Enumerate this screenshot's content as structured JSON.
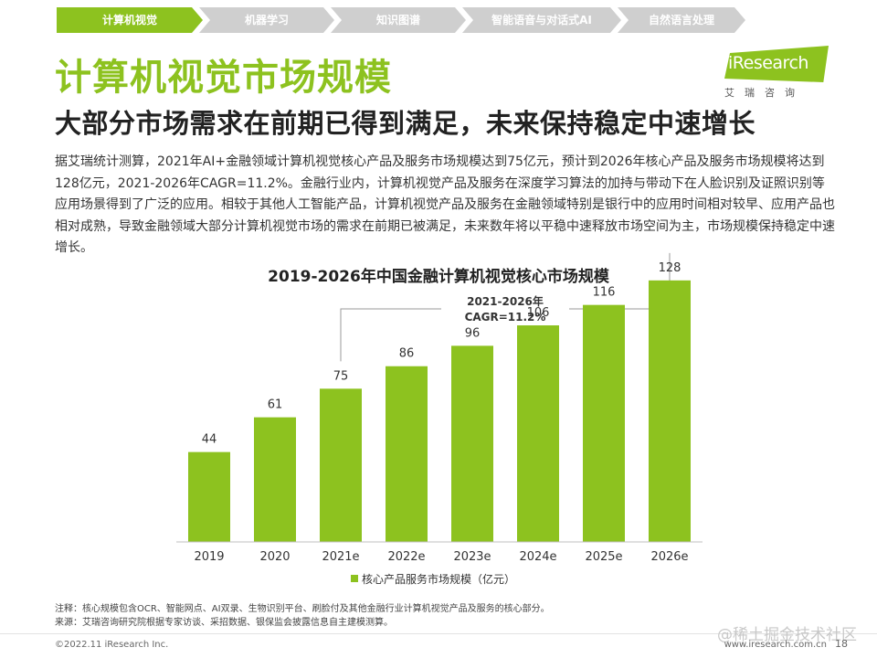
{
  "nav": {
    "tabs": [
      {
        "label": "计算机视觉",
        "active": true
      },
      {
        "label": "机器学习",
        "active": false
      },
      {
        "label": "知识图谱",
        "active": false
      },
      {
        "label": "智能语音与对话式AI",
        "active": false
      },
      {
        "label": "自然语言处理",
        "active": false
      }
    ]
  },
  "logo": {
    "brand": "iResearch",
    "sub": "艾瑞咨询"
  },
  "header": {
    "title": "计算机视觉市场规模",
    "subtitle": "大部分市场需求在前期已得到满足，未来保持稳定中速增长"
  },
  "body": {
    "paragraph": "据艾瑞统计测算，2021年AI+金融领域计算机视觉核心产品及服务市场规模达到75亿元，预计到2026年核心产品及服务市场规模将达到128亿元，2021-2026年CAGR=11.2%。金融行业内，计算机视觉产品及服务在深度学习算法的加持与带动下在人脸识别及证照识别等应用场景得到了广泛的应用。相较于其他人工智能产品，计算机视觉产品及服务在金融领域特别是银行中的应用时间相对较早、应用产品也相对成熟，导致金融领域大部分计算机视觉市场的需求在前期已被满足，未来数年将以平稳中速释放市场空间为主，市场规模保持稳定中速增长。"
  },
  "chart_data": {
    "type": "bar",
    "title": "2019-2026年中国金融计算机视觉核心市场规模",
    "categories": [
      "2019",
      "2020",
      "2021e",
      "2022e",
      "2023e",
      "2024e",
      "2025e",
      "2026e"
    ],
    "series": [
      {
        "name": "核心产品服务市场规模（亿元）",
        "values": [
          44,
          61,
          75,
          86,
          96,
          106,
          116,
          128
        ]
      }
    ],
    "ylim": [
      0,
      140
    ],
    "grid": false,
    "legend": "bottom",
    "annotation": {
      "line1": "2021-2026年",
      "line2": "CAGR=11.2%",
      "from_category": "2021e",
      "to_category": "2026e"
    },
    "bar_color": "#8dc21f"
  },
  "notes": {
    "note": "注释：核心规模包含OCR、智能网点、AI双录、生物识别平台、刷脸付及其他金融行业计算机视觉产品及服务的核心部分。",
    "source": "来源：艾瑞咨询研究院根据专家访谈、采招数据、银保监会披露信息自主建模测算。"
  },
  "footer": {
    "copyright": "©2022.11 iResearch Inc.",
    "website": "www.iresearch.com.cn",
    "page": "18",
    "watermark": "@稀土掘金技术社区"
  },
  "colors": {
    "accent": "#8dc21f",
    "nav_inactive": "#cfcfcf"
  }
}
